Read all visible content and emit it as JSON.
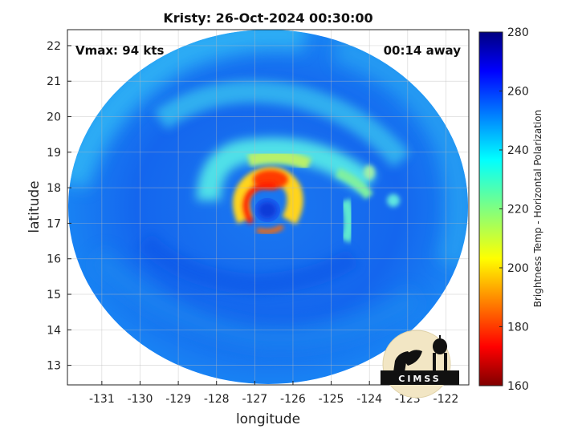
{
  "chart_data": {
    "type": "heatmap",
    "title": "Kristy: 26-Oct-2024 00:30:00",
    "xlabel": "longitude",
    "ylabel": "latitude",
    "xlim": [
      -131.9,
      -121.4
    ],
    "ylim": [
      12.45,
      22.45
    ],
    "xticks": [
      -131,
      -130,
      -129,
      -128,
      -127,
      -126,
      -125,
      -124,
      -123,
      -122
    ],
    "yticks": [
      13,
      14,
      15,
      16,
      17,
      18,
      19,
      20,
      21,
      22
    ],
    "grid": true,
    "annotations": {
      "left": "Vmax: 94 kts",
      "right": "00:14 away"
    },
    "storm_center": {
      "lon": -126.6,
      "lat": 17.4
    },
    "colorbar": {
      "label": "Brightness Temp - Horizontal Polarization",
      "min": 160,
      "max": 280,
      "ticks": [
        160,
        180,
        200,
        220,
        240,
        260,
        280
      ],
      "colormap": "jet"
    }
  },
  "logo": {
    "text": "CIMSS"
  }
}
